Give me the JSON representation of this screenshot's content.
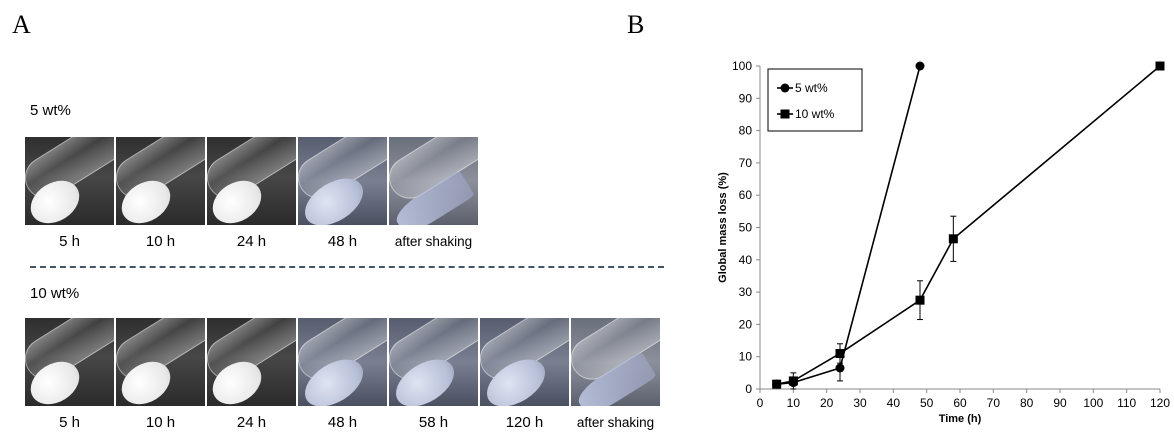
{
  "panels": {
    "a_label": "A",
    "b_label": "B"
  },
  "photos": {
    "group_5wt": {
      "label": "5 wt%",
      "items": [
        {
          "caption": "5 h",
          "state": "gel"
        },
        {
          "caption": "10 h",
          "state": "gel"
        },
        {
          "caption": "24 h",
          "state": "gel"
        },
        {
          "caption": "48 h",
          "state": "soft"
        },
        {
          "caption": "after shaking",
          "state": "liquid"
        }
      ]
    },
    "group_10wt": {
      "label": "10 wt%",
      "items": [
        {
          "caption": "5 h",
          "state": "gel"
        },
        {
          "caption": "10 h",
          "state": "gel"
        },
        {
          "caption": "24 h",
          "state": "gel"
        },
        {
          "caption": "48 h",
          "state": "soft"
        },
        {
          "caption": "58 h",
          "state": "soft"
        },
        {
          "caption": "120 h",
          "state": "soft"
        },
        {
          "caption": "after shaking",
          "state": "liquid"
        }
      ]
    }
  },
  "chart_data": {
    "type": "line",
    "xlabel": "Time (h)",
    "ylabel": "Global mass loss (%)",
    "xlim": [
      0,
      120
    ],
    "ylim": [
      0,
      100
    ],
    "xticks": [
      "0",
      "10",
      "20",
      "30",
      "40",
      "50",
      "60",
      "70",
      "80",
      "90",
      "100",
      "110",
      "120"
    ],
    "yticks": [
      "0",
      "10",
      "20",
      "30",
      "40",
      "50",
      "60",
      "70",
      "80",
      "90",
      "100"
    ],
    "grid": false,
    "legend_position": "top-left",
    "series": [
      {
        "name": "5 wt%",
        "marker": "circle",
        "x": [
          5,
          10,
          24,
          48
        ],
        "y": [
          1.5,
          2,
          6.5,
          100
        ],
        "err": [
          0,
          0,
          4,
          0
        ]
      },
      {
        "name": "10 wt%",
        "marker": "square",
        "x": [
          5,
          10,
          24,
          48,
          58,
          120
        ],
        "y": [
          1.5,
          2.5,
          11,
          27.5,
          46.5,
          100
        ],
        "err": [
          0,
          2.5,
          3,
          6,
          7,
          0
        ]
      }
    ]
  }
}
